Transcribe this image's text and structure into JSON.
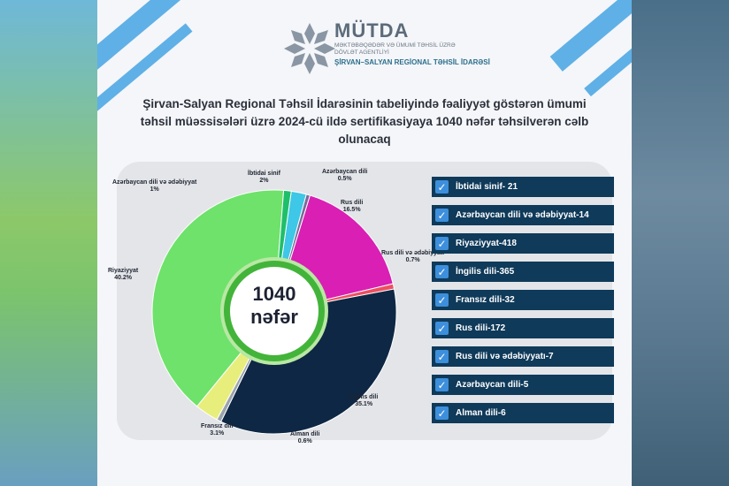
{
  "brand": {
    "name": "MÜTDA",
    "subtitle": "MƏKTƏBƏQƏDƏR VƏ ÜMUMİ TƏHSİL ÜZRƏ DÖVLƏT AGENTLİYİ",
    "region": "ŞİRVAN–SALYAN REGİONAL TƏHSİL İDARƏSİ"
  },
  "headline": "Şirvan-Salyan Regional Təhsil İdarəsinin tabeliyində fəaliyyət göstərən ümumi təhsil müəssisələri üzrə 2024-cü ildə sertifikasiyaya 1040 nəfər təhsilverən cəlb olunacaq",
  "center": {
    "total": "1040",
    "unit": "nəfər"
  },
  "colors": {
    "accent_green": "#43b43a",
    "list_bg": "#0f3a5a",
    "check_blue": "#3d8fdc"
  },
  "chart_data": {
    "type": "pie",
    "slices": [
      {
        "name": "İbtidai sinif",
        "percent": "2%",
        "value": 2.0,
        "color": "#3ec7e6"
      },
      {
        "name": "Azərbaycan dili",
        "percent": "0.5%",
        "value": 0.5,
        "color": "#7a6a9a"
      },
      {
        "name": "Rus dili",
        "percent": "16.5%",
        "value": 16.5,
        "color": "#d91fb4"
      },
      {
        "name": "Rus dili və ədəbiyyatı",
        "percent": "0.7%",
        "value": 0.7,
        "color": "#ee4f60"
      },
      {
        "name": "İngilis dili",
        "percent": "35.1%",
        "value": 35.1,
        "color": "#0e2744"
      },
      {
        "name": "Alman dili",
        "percent": "0.6%",
        "value": 0.6,
        "color": "#9aa3ae"
      },
      {
        "name": "Fransız dili",
        "percent": "3.1%",
        "value": 3.1,
        "color": "#e8ee7c"
      },
      {
        "name": "Riyaziyyat",
        "percent": "40.2%",
        "value": 40.2,
        "color": "#6ee26a"
      },
      {
        "name": "Azərbaycan dili və ədəbiyyat",
        "percent": "1%",
        "value": 1.0,
        "color": "#1fbf6a"
      }
    ]
  },
  "list": {
    "items": [
      "İbtidai sinif- 21",
      "Azərbaycan dili və ədəbiyyat-14",
      "Riyaziyyat-418",
      "İngilis dili-365",
      "Fransız dili-32",
      "Rus dili-172",
      "Rus dili və ədəbiyyatı-7",
      "Azərbaycan dili-5",
      "Alman dili-6"
    ],
    "check_icon": "✓"
  }
}
